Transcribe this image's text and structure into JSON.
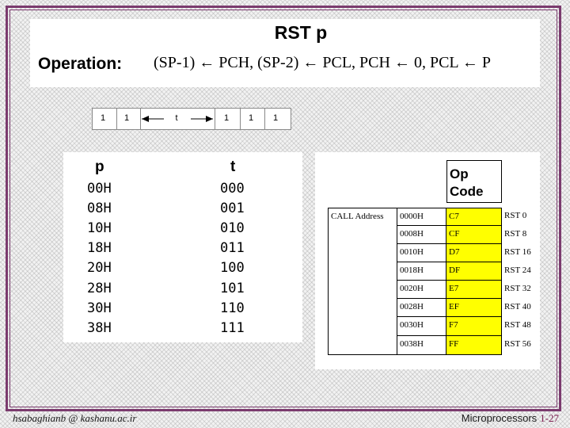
{
  "slide": {
    "title": "RST p",
    "operation_label": "Operation:",
    "operation_text": "(SP-1) ← PCH, (SP-2) ← PCL, PCH ← 0, PCL ← P"
  },
  "opcode_bits": [
    "1",
    "1",
    "t",
    "1",
    "1",
    "1"
  ],
  "pt_table": {
    "header_p": "p",
    "header_t": "t",
    "rows": [
      {
        "p": "00H",
        "t": "000"
      },
      {
        "p": "08H",
        "t": "001"
      },
      {
        "p": "10H",
        "t": "010"
      },
      {
        "p": "18H",
        "t": "011"
      },
      {
        "p": "20H",
        "t": "100"
      },
      {
        "p": "28H",
        "t": "101"
      },
      {
        "p": "30H",
        "t": "110"
      },
      {
        "p": "38H",
        "t": "111"
      }
    ]
  },
  "call_table": {
    "call_label": "CALL Address",
    "opcode_header": "Op Code",
    "rows": [
      {
        "addr": "0000H",
        "op": "C7",
        "inst": "RST 0"
      },
      {
        "addr": "0008H",
        "op": "CF",
        "inst": "RST 8"
      },
      {
        "addr": "0010H",
        "op": "D7",
        "inst": "RST 16"
      },
      {
        "addr": "0018H",
        "op": "DF",
        "inst": "RST 24"
      },
      {
        "addr": "0020H",
        "op": "E7",
        "inst": "RST 32"
      },
      {
        "addr": "0028H",
        "op": "EF",
        "inst": "RST 40"
      },
      {
        "addr": "0030H",
        "op": "F7",
        "inst": "RST 48"
      },
      {
        "addr": "0038H",
        "op": "FF",
        "inst": "RST 56"
      }
    ]
  },
  "footer": {
    "author": "hsabaghianb @ kashanu.ac.ir",
    "course": "Microprocessors",
    "page": "1-27"
  },
  "colors": {
    "frame": "#7b3b6e",
    "highlight": "#ffff00"
  }
}
